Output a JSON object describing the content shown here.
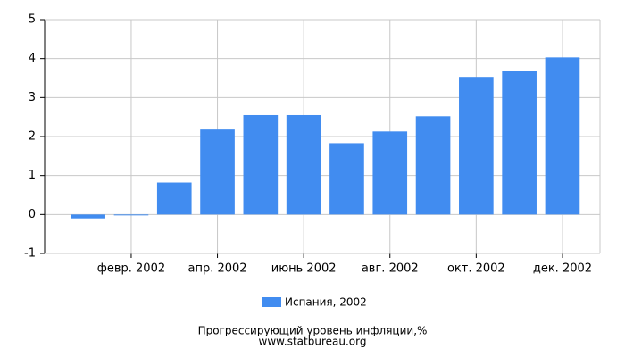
{
  "chart_data": {
    "type": "bar",
    "title": "Прогрессирующий уровень инфляции,%",
    "source": "www.statbureau.org",
    "categories": [
      null,
      "февр. 2002",
      null,
      "апр. 2002",
      null,
      "июнь 2002",
      null,
      "авг. 2002",
      null,
      "окт. 2002",
      null,
      "дек. 2002"
    ],
    "series": [
      {
        "name": "Испания, 2002",
        "color": "#418cf0",
        "values": [
          -0.1,
          -0.02,
          0.82,
          2.18,
          2.55,
          2.55,
          1.83,
          2.13,
          2.52,
          3.53,
          3.68,
          4.03
        ]
      }
    ],
    "ylim": [
      -1,
      5
    ],
    "yticks": [
      -1,
      0,
      1,
      2,
      3,
      4,
      5
    ],
    "grid": true
  }
}
